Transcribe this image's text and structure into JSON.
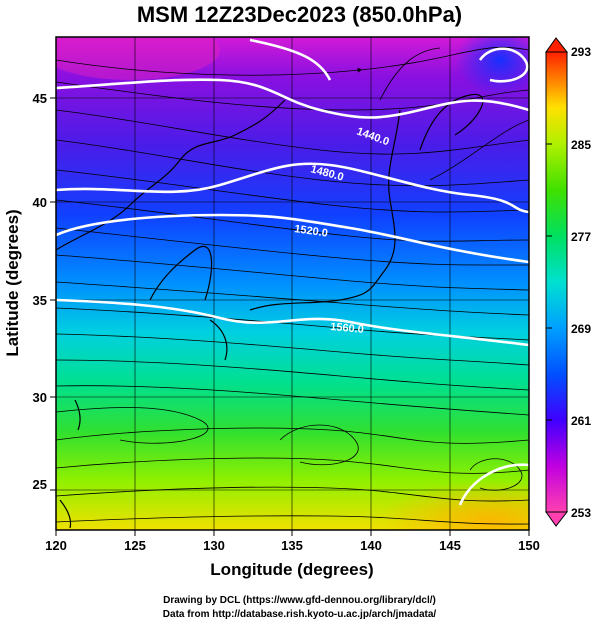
{
  "title": "MSM 12Z23Dec2023 (850.0hPa)",
  "x_axis": {
    "label": "Longitude (degrees)",
    "range": [
      120,
      150
    ],
    "ticks": [
      "120",
      "125",
      "130",
      "135",
      "140",
      "145",
      "150"
    ]
  },
  "y_axis": {
    "label": "Latitude (degrees)",
    "range": [
      22.4,
      47.6
    ],
    "ticks": [
      "25",
      "30",
      "35",
      "40",
      "45"
    ]
  },
  "colorbar": {
    "ticks": [
      "293",
      "285",
      "277",
      "269",
      "261",
      "253"
    ],
    "range": [
      253,
      293
    ],
    "colors": [
      "#ff40b0",
      "#c000e0",
      "#4000ff",
      "#0050ff",
      "#00a0ff",
      "#00e0d0",
      "#00e060",
      "#40e000",
      "#b0f000",
      "#ffe000",
      "#ff8000",
      "#ff2000"
    ]
  },
  "contour_labels": [
    "1440.0",
    "1480.0",
    "1520.0",
    "1560.0"
  ],
  "footer": {
    "line1": "Drawing by DCL (https://www.gfd-dennou.org/library/dcl/)",
    "line2": "Data from http://database.rish.kyoto-u.ac.jp/arch/jmadata/"
  }
}
